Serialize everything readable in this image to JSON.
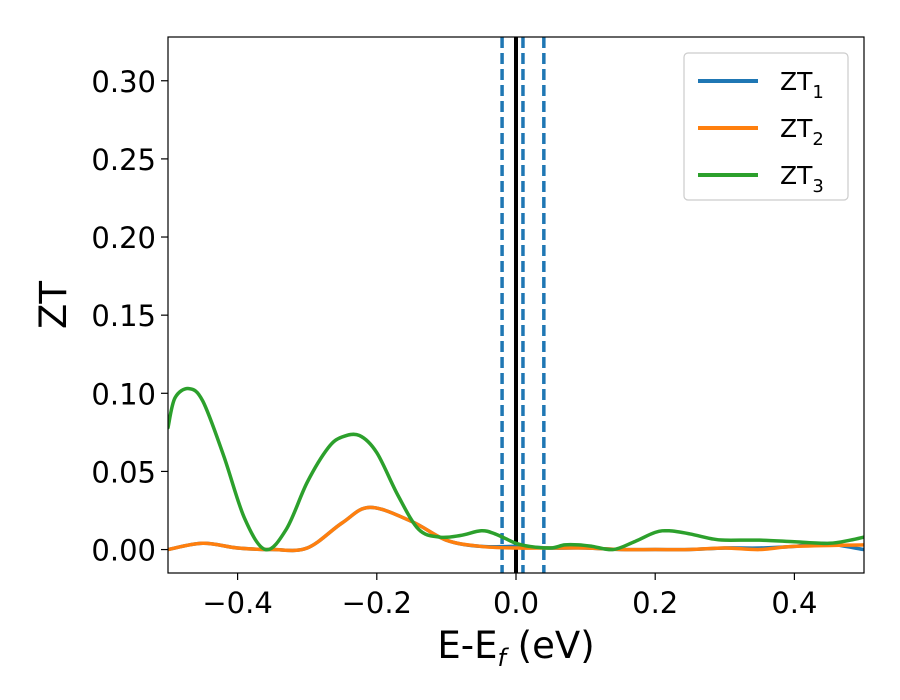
{
  "chart_data": {
    "type": "line",
    "xlabel": "E-E",
    "xlabel_sub": "f",
    "xlabel_unit": " (eV)",
    "ylabel": "ZT",
    "xlim": [
      -0.5,
      0.5
    ],
    "ylim": [
      -0.015,
      0.328
    ],
    "xticks": [
      -0.4,
      -0.2,
      0.0,
      0.2,
      0.4
    ],
    "xtick_labels": [
      "−0.4",
      "−0.2",
      "0.0",
      "0.2",
      "0.4"
    ],
    "yticks": [
      0.0,
      0.05,
      0.1,
      0.15,
      0.2,
      0.25,
      0.3
    ],
    "ytick_labels": [
      "0.00",
      "0.05",
      "0.10",
      "0.15",
      "0.20",
      "0.25",
      "0.30"
    ],
    "grid": false,
    "legend_position": "top-right",
    "vlines": [
      {
        "x": 0.0,
        "style": "solid",
        "color": "#000000"
      },
      {
        "x": -0.02,
        "style": "dashed",
        "color": "#1f77b4"
      },
      {
        "x": 0.01,
        "style": "dashed",
        "color": "#1f77b4"
      },
      {
        "x": 0.04,
        "style": "dashed",
        "color": "#1f77b4"
      }
    ],
    "series": [
      {
        "name": "ZT",
        "name_sub": "1",
        "color": "#1f77b4",
        "x": [
          -0.5,
          -0.45,
          -0.4,
          -0.35,
          -0.3,
          -0.25,
          -0.21,
          -0.15,
          -0.1,
          -0.05,
          0.0,
          0.05,
          0.1,
          0.15,
          0.2,
          0.25,
          0.3,
          0.35,
          0.4,
          0.44,
          0.5
        ],
        "y": [
          0.0,
          0.004,
          0.001,
          0.0,
          0.001,
          0.017,
          0.027,
          0.018,
          0.006,
          0.002,
          0.002,
          0.001,
          0.001,
          0.0,
          0.0,
          0.0,
          0.001,
          0.001,
          0.002,
          0.004,
          0.0
        ]
      },
      {
        "name": "ZT",
        "name_sub": "2",
        "color": "#ff7f0e",
        "x": [
          -0.5,
          -0.45,
          -0.4,
          -0.35,
          -0.3,
          -0.25,
          -0.21,
          -0.15,
          -0.1,
          -0.05,
          0.0,
          0.05,
          0.1,
          0.15,
          0.2,
          0.25,
          0.3,
          0.35,
          0.4,
          0.5
        ],
        "y": [
          0.0,
          0.004,
          0.001,
          0.0,
          0.001,
          0.017,
          0.027,
          0.018,
          0.006,
          0.002,
          0.001,
          0.001,
          0.001,
          0.0,
          0.0,
          0.0,
          0.001,
          0.0,
          0.002,
          0.003
        ]
      },
      {
        "name": "ZT",
        "name_sub": "3",
        "color": "#2ca02c",
        "x": [
          -0.5,
          -0.49,
          -0.47,
          -0.45,
          -0.42,
          -0.39,
          -0.36,
          -0.33,
          -0.3,
          -0.27,
          -0.25,
          -0.225,
          -0.2,
          -0.17,
          -0.14,
          -0.11,
          -0.08,
          -0.05,
          -0.03,
          0.0,
          0.02,
          0.05,
          0.07,
          0.09,
          0.11,
          0.14,
          0.17,
          0.2,
          0.22,
          0.25,
          0.28,
          0.3,
          0.35,
          0.4,
          0.45,
          0.48,
          0.5
        ],
        "y": [
          0.078,
          0.097,
          0.103,
          0.095,
          0.06,
          0.02,
          0.0,
          0.013,
          0.043,
          0.065,
          0.072,
          0.073,
          0.062,
          0.035,
          0.013,
          0.008,
          0.009,
          0.012,
          0.01,
          0.004,
          0.002,
          0.001,
          0.003,
          0.003,
          0.002,
          0.0,
          0.005,
          0.011,
          0.012,
          0.01,
          0.007,
          0.006,
          0.006,
          0.005,
          0.004,
          0.006,
          0.008
        ]
      }
    ]
  }
}
